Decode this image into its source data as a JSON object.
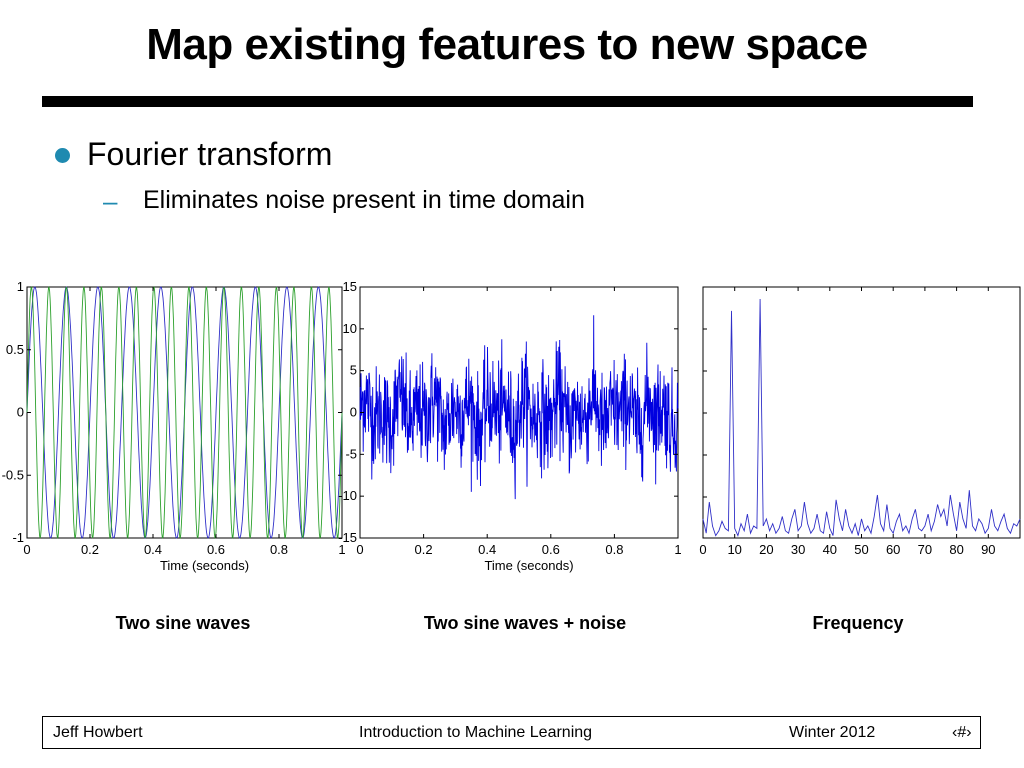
{
  "slide": {
    "title": "Map existing features to new space",
    "bullet_1": "Fourier transform",
    "bullet_2_dash": "–",
    "bullet_2": "Eliminates noise present in time domain"
  },
  "captions": [
    "Two sine waves",
    "Two sine waves + noise",
    "Frequency"
  ],
  "footer": {
    "author": "Jeff Howbert",
    "course": "Introduction to Machine Learning",
    "term": "Winter 2012",
    "page": "‹#›"
  },
  "chart_data": [
    {
      "type": "line",
      "xlabel": "Time (seconds)",
      "ylabel": "",
      "xlim": [
        0,
        1
      ],
      "ylim": [
        -1,
        1
      ],
      "x_ticks": [
        "0",
        "0.2",
        "0.4",
        "0.6",
        "0.8",
        "1"
      ],
      "y_ticks": [
        "1",
        "0.5",
        "0",
        "-0.5",
        "-1"
      ],
      "series": [
        {
          "frequency_hz": 10,
          "amplitude": 1,
          "color": "#3030c8"
        },
        {
          "frequency_hz": 18,
          "amplitude": 1,
          "color": "#2ca02c"
        }
      ]
    },
    {
      "type": "line",
      "xlabel": "Time (seconds)",
      "ylabel": "",
      "xlim": [
        0,
        1
      ],
      "ylim": [
        -15,
        15
      ],
      "x_ticks": [
        "0",
        "0.2",
        "0.4",
        "0.6",
        "0.8",
        "1"
      ],
      "y_ticks": [
        "15",
        "10",
        "5",
        "0",
        "-5",
        "-10",
        "-15"
      ],
      "series": [
        {
          "description": "10 Hz + 18 Hz sine waves plus random noise, std ≈ 3",
          "color": "#0000e0"
        }
      ]
    },
    {
      "type": "line",
      "xlabel": "",
      "ylabel": "",
      "xlim": [
        0,
        100
      ],
      "x_ticks": [
        "0",
        "10",
        "20",
        "30",
        "40",
        "50",
        "60",
        "70",
        "80",
        "90"
      ],
      "series": [
        {
          "color": "#3030c8",
          "x": [
            0,
            1,
            2,
            3,
            4,
            5,
            6,
            7,
            8,
            9,
            10,
            11,
            12,
            13,
            14,
            15,
            16,
            17,
            18,
            19,
            20,
            21,
            22,
            23,
            24,
            25,
            26,
            27,
            28,
            29,
            30,
            31,
            32,
            33,
            34,
            35,
            36,
            37,
            38,
            39,
            40,
            41,
            42,
            43,
            44,
            45,
            46,
            47,
            48,
            49,
            50,
            51,
            52,
            53,
            54,
            55,
            56,
            57,
            58,
            59,
            60,
            61,
            62,
            63,
            64,
            65,
            66,
            67,
            68,
            69,
            70,
            71,
            72,
            73,
            74,
            75,
            76,
            77,
            78,
            79,
            80,
            81,
            82,
            83,
            84,
            85,
            86,
            87,
            88,
            89,
            90,
            91,
            92,
            93,
            94,
            95,
            96,
            97,
            98,
            99,
            100
          ],
          "y": [
            8,
            2,
            15,
            5,
            1,
            3,
            7,
            4,
            3,
            95,
            4,
            1,
            6,
            3,
            10,
            2,
            5,
            4,
            100,
            5,
            8,
            3,
            6,
            2,
            4,
            9,
            3,
            2,
            8,
            12,
            3,
            5,
            15,
            6,
            2,
            4,
            10,
            3,
            2,
            11,
            4,
            1,
            16,
            8,
            3,
            12,
            5,
            2,
            6,
            1,
            8,
            3,
            5,
            2,
            9,
            18,
            6,
            3,
            14,
            4,
            2,
            7,
            10,
            3,
            5,
            2,
            8,
            12,
            4,
            3,
            5,
            10,
            3,
            7,
            14,
            9,
            12,
            5,
            18,
            10,
            3,
            15,
            8,
            4,
            20,
            5,
            3,
            8,
            6,
            2,
            4,
            12,
            5,
            3,
            7,
            10,
            4,
            2,
            6,
            5,
            8
          ]
        }
      ]
    }
  ]
}
